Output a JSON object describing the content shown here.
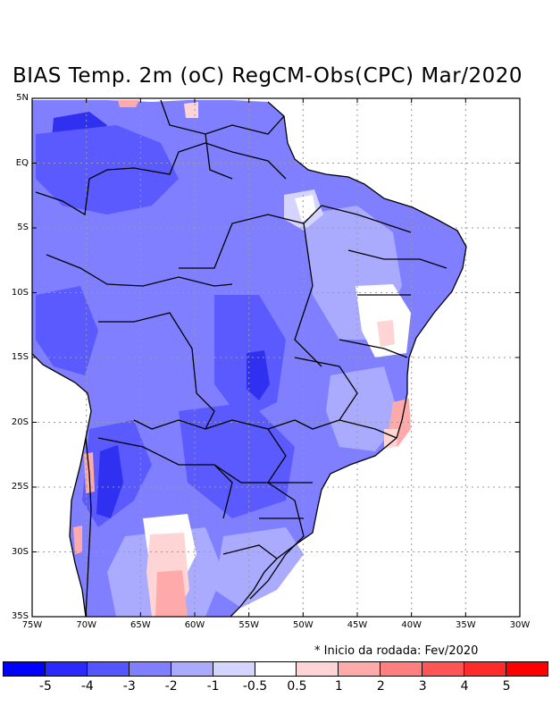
{
  "title": "BIAS Temp. 2m (oC) RegCM-Obs(CPC) Mar/2020",
  "note": "* Inicio da rodada: Fev/2020",
  "lat_labels": [
    "5N",
    "EQ",
    "5S",
    "10S",
    "15S",
    "20S",
    "25S",
    "30S",
    "35S"
  ],
  "lon_labels": [
    "75W",
    "70W",
    "65W",
    "60W",
    "55W",
    "50W",
    "45W",
    "40W",
    "35W",
    "30W"
  ],
  "colorbar": {
    "colors": [
      "#0000ff",
      "#2a2aff",
      "#5555ff",
      "#7f7fff",
      "#aaaaff",
      "#d4d4ff",
      "#ffffff",
      "#ffd4d4",
      "#ffaaaa",
      "#ff7f7f",
      "#ff5555",
      "#ff2a2a",
      "#ff0000"
    ],
    "labels": [
      "-5",
      "-4",
      "-3",
      "-2",
      "-1",
      "-0.5",
      "0.5",
      "1",
      "2",
      "3",
      "4",
      "5"
    ]
  },
  "map_colors": {
    "deep": "#3030f0",
    "strong": "#5a5aff",
    "mid": "#7f7fff",
    "light": "#aaaaff",
    "pale": "#d4d4ff",
    "white": "#ffffff",
    "pink": "#ffd4d4",
    "rose": "#ffaaaa",
    "red": "#ff7f7f"
  }
}
